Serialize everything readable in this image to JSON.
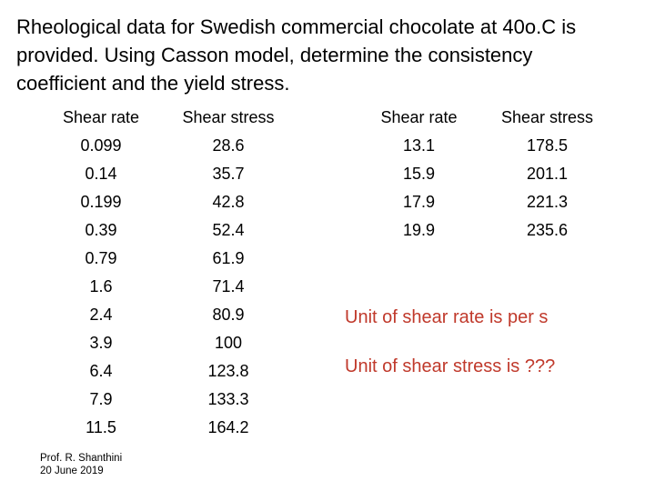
{
  "title_lines": [
    "Rheological data for Swedish commercial chocolate at 40o.C is",
    "provided. Using Casson model, determine the consistency",
    "coefficient and the yield stress."
  ],
  "table1": {
    "headers": [
      "Shear rate",
      "Shear stress"
    ],
    "rows": [
      [
        "0.099",
        "28.6"
      ],
      [
        "0.14",
        "35.7"
      ],
      [
        "0.199",
        "42.8"
      ],
      [
        "0.39",
        "52.4"
      ],
      [
        "0.79",
        "61.9"
      ],
      [
        "1.6",
        "71.4"
      ],
      [
        "2.4",
        "80.9"
      ],
      [
        "3.9",
        "100"
      ],
      [
        "6.4",
        "123.8"
      ],
      [
        "7.9",
        "133.3"
      ],
      [
        "11.5",
        "164.2"
      ]
    ]
  },
  "table2": {
    "headers": [
      "Shear rate",
      "Shear stress"
    ],
    "rows": [
      [
        "13.1",
        "178.5"
      ],
      [
        "15.9",
        "201.1"
      ],
      [
        "17.9",
        "221.3"
      ],
      [
        "19.9",
        "235.6"
      ]
    ]
  },
  "notes": {
    "shear_rate_unit": "Unit of shear rate is per s",
    "shear_stress_unit": "Unit of shear stress is ???"
  },
  "footer": {
    "author": "Prof. R. Shanthini",
    "date": "20 June 2019"
  },
  "colors": {
    "note_text": "#c0392b"
  }
}
